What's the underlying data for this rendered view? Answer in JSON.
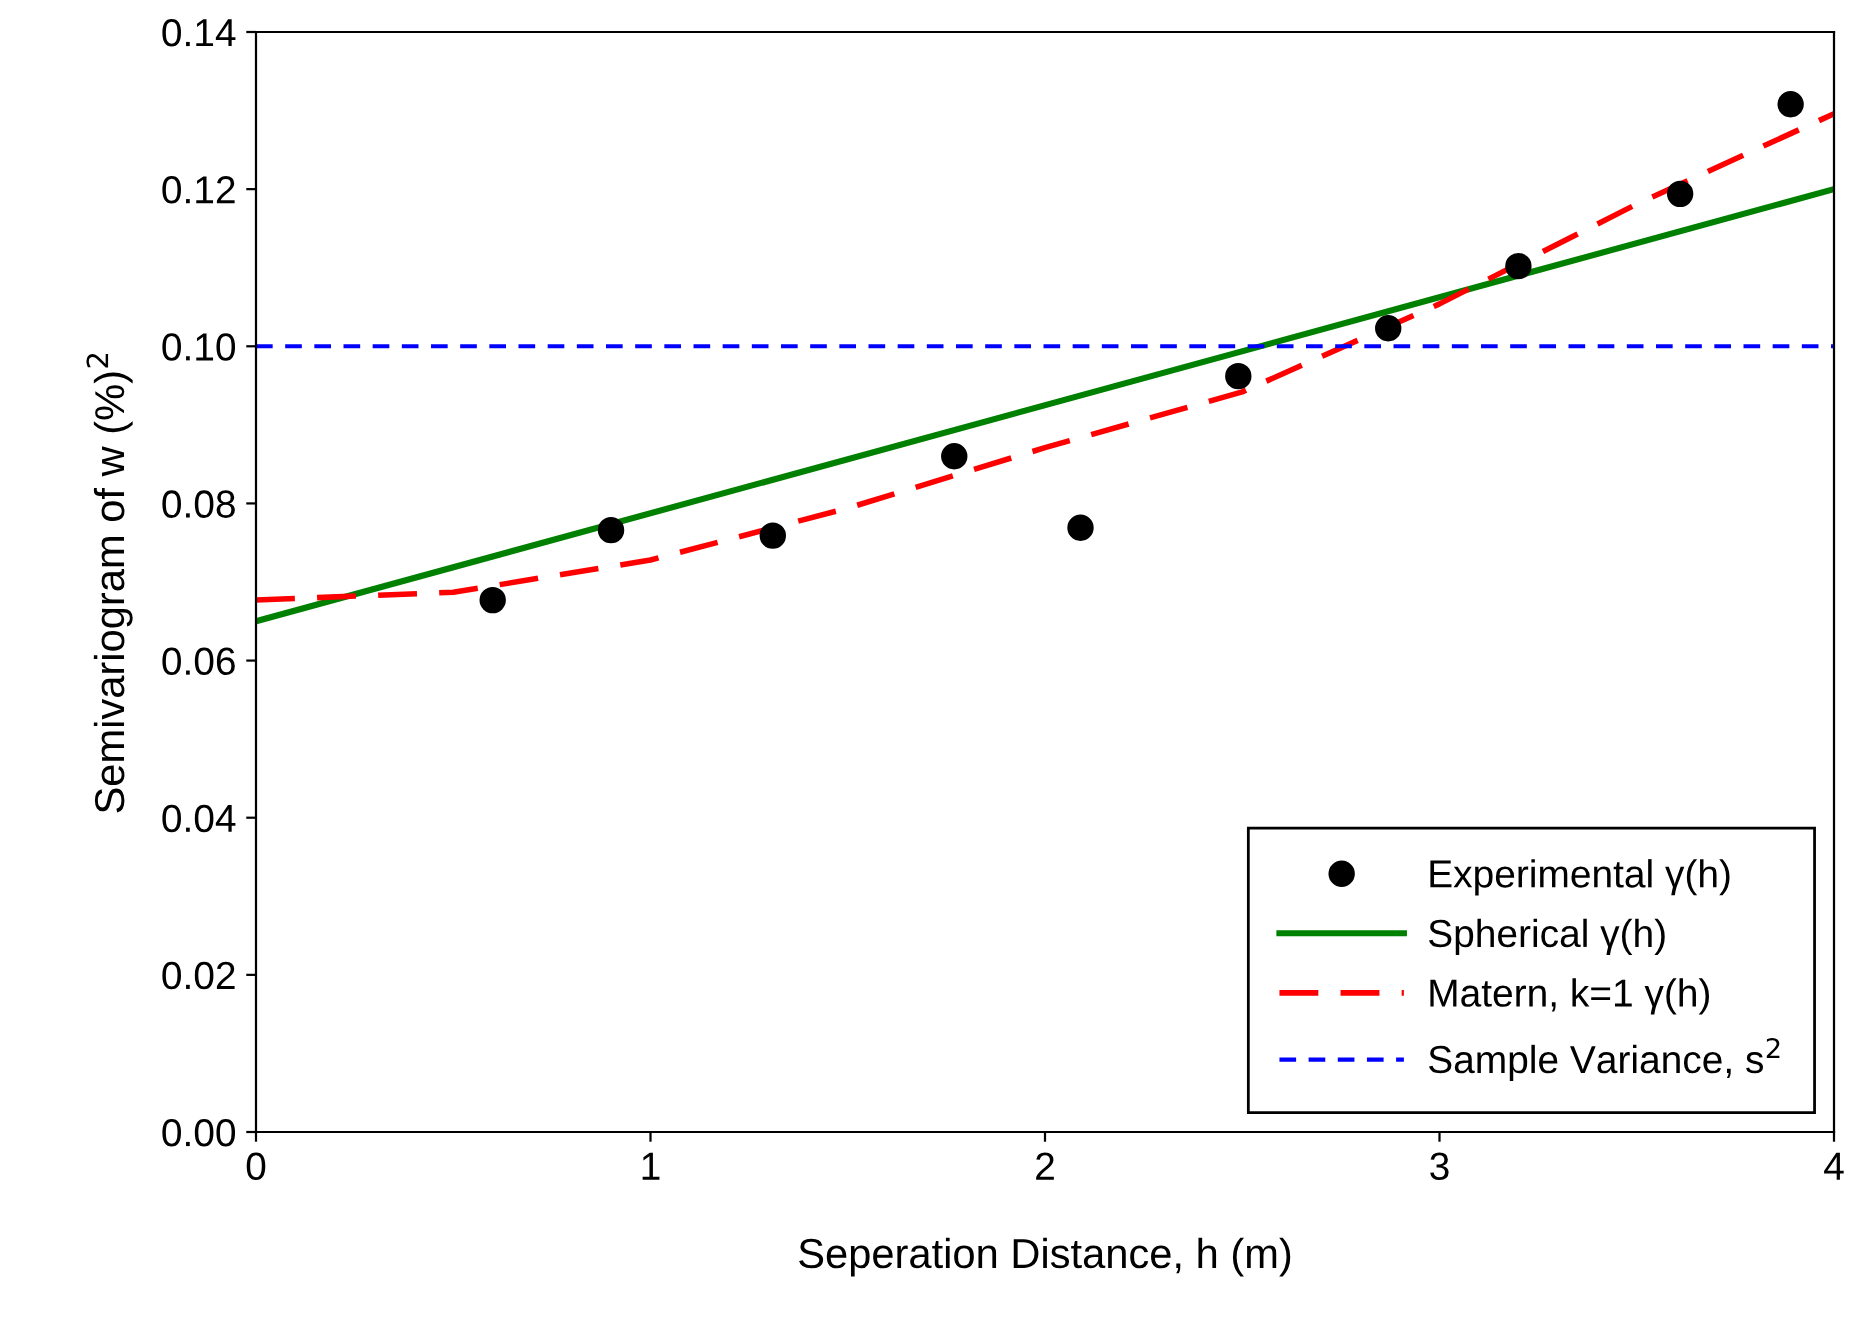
{
  "chart_data": {
    "type": "scatter",
    "xlabel": "Seperation Distance, h (m)",
    "ylabel": "Semivariogram of w (%)$^{2}$",
    "xlim": [
      0,
      4
    ],
    "ylim": [
      0,
      0.14
    ],
    "xticks": [
      0,
      1,
      2,
      3,
      4
    ],
    "yticks": [
      {
        "value": 0,
        "label": "0.00"
      },
      {
        "value": 0.02,
        "label": "0.02"
      },
      {
        "value": 0.04,
        "label": "0.04"
      },
      {
        "value": 0.06,
        "label": "0.06"
      },
      {
        "value": 0.08,
        "label": "0.08"
      },
      {
        "value": 0.1,
        "label": "0.10"
      },
      {
        "value": 0.12,
        "label": "0.12"
      },
      {
        "value": 0.14,
        "label": "0.14"
      }
    ],
    "grid": false,
    "legend": "bottom right",
    "series": [
      {
        "name": "Experimental γ(h)",
        "marker": "circle",
        "color": "#000000",
        "x": [
          0.6,
          0.9,
          1.31,
          1.77,
          2.09,
          2.49,
          2.87,
          3.2,
          3.61,
          3.89
        ],
        "values": [
          0.0677,
          0.0766,
          0.0759,
          0.086,
          0.0769,
          0.0962,
          0.1023,
          0.1102,
          0.1194,
          0.1308
        ]
      },
      {
        "name": "Spherical γ(h)",
        "type": "line",
        "line_style": "solid",
        "color": "#008000",
        "x": [
          0,
          4
        ],
        "values": [
          0.065,
          0.12
        ]
      },
      {
        "name": "Matern, k=1 γ(h)",
        "type": "line",
        "line_style": "dashed",
        "color": "#ff0000",
        "x": [
          0,
          0.5,
          1,
          1.5,
          2,
          2.5,
          3,
          3.5,
          4
        ],
        "values": [
          0.0677,
          0.0687,
          0.0728,
          0.0794,
          0.0871,
          0.0942,
          0.1054,
          0.1181,
          0.1296
        ]
      },
      {
        "name": "Sample Variance, s$^{2}$",
        "type": "line",
        "line_style": "dashed",
        "color": "#0000ff",
        "x": [
          0,
          4
        ],
        "values": [
          0.1,
          0.1
        ]
      }
    ]
  }
}
